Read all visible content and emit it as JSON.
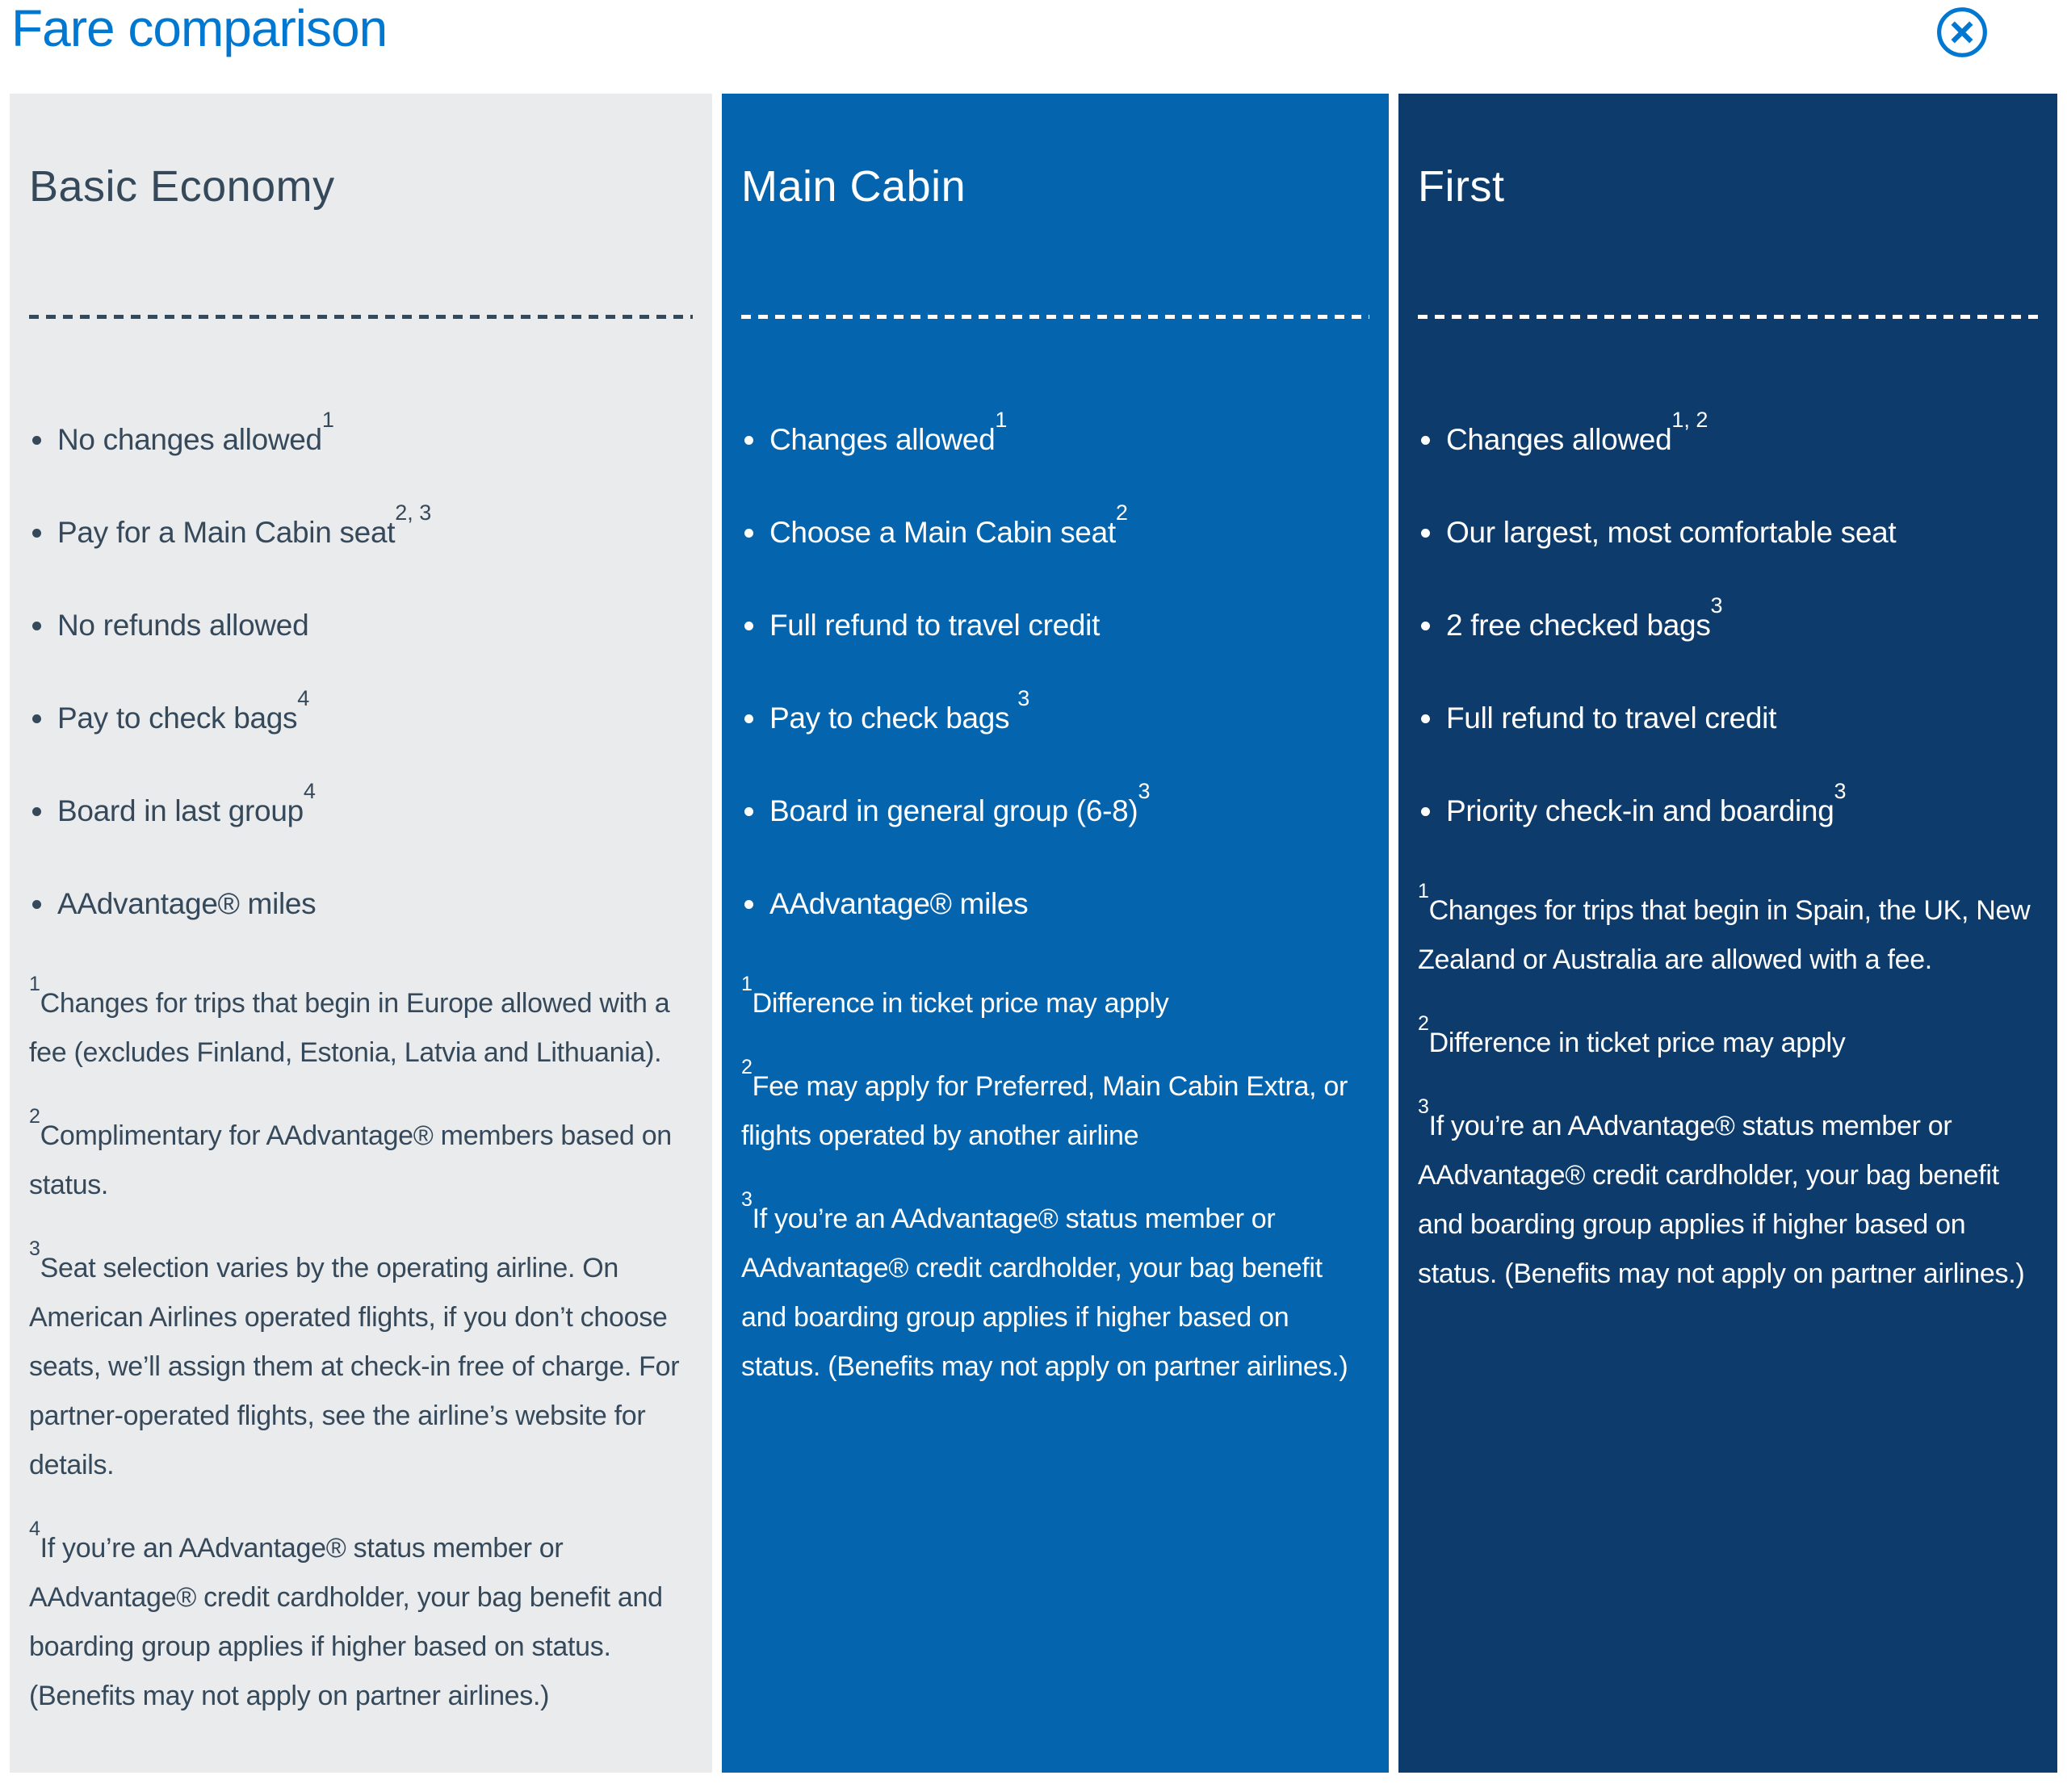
{
  "header": {
    "title": "Fare comparison",
    "accent_color": "#0078d2",
    "close_icon": "circle-x-icon"
  },
  "columns": [
    {
      "id": "basic-economy",
      "title": "Basic Economy",
      "theme": {
        "bg": "#e9ebed",
        "text": "#36495a",
        "divider": "#36495a",
        "bullet": "#36495a"
      },
      "bullets": [
        {
          "text": "No changes allowed",
          "sup": "1"
        },
        {
          "text": "Pay for a Main Cabin seat",
          "sup": "2, 3"
        },
        {
          "text": "No refunds allowed",
          "sup": ""
        },
        {
          "text": "Pay to check bags",
          "sup": "4"
        },
        {
          "text": "Board in last group",
          "sup": "4"
        },
        {
          "text": "AAdvantage® miles",
          "sup": ""
        }
      ],
      "footnotes": [
        {
          "sup": "1",
          "text": "Changes for trips that begin in Europe allowed with a fee (excludes Finland, Estonia, Latvia and Lithuania)."
        },
        {
          "sup": "2",
          "text": "Complimentary for AAdvantage® members based on status."
        },
        {
          "sup": "3",
          "text": "Seat selection varies by the operating airline. On American Airlines operated flights, if you don’t choose seats, we’ll assign them at check-in free of charge. For partner-operated flights, see the airline’s website for details."
        },
        {
          "sup": "4",
          "text": "If you’re an AAdvantage® status member or AAdvantage® credit cardholder, your bag benefit and boarding group applies if higher based on status. (Benefits may not apply on partner airlines.)"
        }
      ]
    },
    {
      "id": "main-cabin",
      "title": "Main Cabin",
      "theme": {
        "bg": "#0464ae",
        "text": "#ffffff",
        "divider": "#ffffff",
        "bullet": "#ffffff"
      },
      "bullets": [
        {
          "text": "Changes allowed",
          "sup": "1"
        },
        {
          "text": "Choose a Main Cabin seat",
          "sup": "2"
        },
        {
          "text": "Full refund to travel credit",
          "sup": ""
        },
        {
          "text": "Pay to check bags ",
          "sup": "3"
        },
        {
          "text": "Board in general group (6-8)",
          "sup": "3"
        },
        {
          "text": "AAdvantage® miles",
          "sup": ""
        }
      ],
      "footnotes": [
        {
          "sup": "1",
          "text": "Difference in ticket price may apply"
        },
        {
          "sup": "2",
          "text": "Fee may apply for Preferred, Main Cabin Extra, or flights operated by another airline"
        },
        {
          "sup": "3",
          "text": "If you’re an AAdvantage® status member or AAdvantage® credit cardholder, your bag benefit and boarding group applies if higher based on status. (Benefits may not apply on partner airlines.)"
        }
      ]
    },
    {
      "id": "first",
      "title": "First",
      "theme": {
        "bg": "#0d3c6c",
        "text": "#ffffff",
        "divider": "#ffffff",
        "bullet": "#ffffff"
      },
      "bullets": [
        {
          "text": "Changes allowed",
          "sup": "1, 2"
        },
        {
          "text": "Our largest, most comfortable seat",
          "sup": ""
        },
        {
          "text": "2 free checked bags",
          "sup": "3"
        },
        {
          "text": "Full refund to travel credit",
          "sup": ""
        },
        {
          "text": "Priority check-in and boarding",
          "sup": "3"
        }
      ],
      "footnotes": [
        {
          "sup": "1",
          "text": "Changes for trips that begin in Spain, the UK, New Zealand or Australia are allowed with a fee."
        },
        {
          "sup": "2",
          "text": "Difference in ticket price may apply"
        },
        {
          "sup": "3",
          "text": "If you’re an AAdvantage® status member or AAdvantage® credit cardholder, your bag benefit and boarding group applies if higher based on status. (Benefits may not apply on partner airlines.)"
        }
      ]
    }
  ]
}
